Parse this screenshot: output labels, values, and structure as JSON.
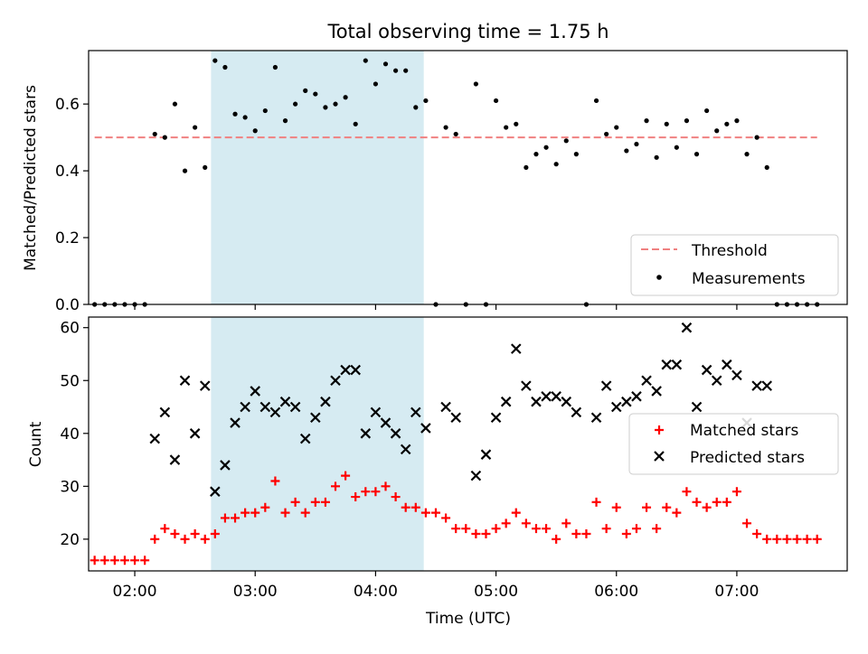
{
  "title": "Total observing time = 1.75 h",
  "colors": {
    "threshold": "#f08080",
    "measurements": "#000000",
    "matched": "#ff0000",
    "predicted": "#000000",
    "span": "#add8e6"
  },
  "chart_data": [
    {
      "type": "scatter",
      "ylabel": "Matched/Predicted stars",
      "ylim": [
        0,
        0.76
      ],
      "xlim": [
        "01:37",
        "07:55"
      ],
      "grid": false,
      "legend_position": "lower-right",
      "legend": [
        "Threshold",
        "Measurements"
      ],
      "yticks": [
        "0.0",
        "0.2",
        "0.4",
        "0.6"
      ],
      "highlight_span": [
        "02:38",
        "04:24"
      ],
      "threshold": {
        "name": "Threshold",
        "y": 0.5,
        "x": [
          "01:40",
          "07:40"
        ]
      },
      "series": [
        {
          "name": "Measurements",
          "x": [
            "01:40",
            "01:45",
            "01:50",
            "01:55",
            "02:00",
            "02:05",
            "02:10",
            "02:15",
            "02:20",
            "02:25",
            "02:30",
            "02:35",
            "02:40",
            "02:45",
            "02:50",
            "02:55",
            "03:00",
            "03:05",
            "03:10",
            "03:15",
            "03:20",
            "03:25",
            "03:30",
            "03:35",
            "03:40",
            "03:45",
            "03:50",
            "03:55",
            "04:00",
            "04:05",
            "04:10",
            "04:15",
            "04:20",
            "04:25",
            "04:30",
            "04:35",
            "04:40",
            "04:45",
            "04:50",
            "04:55",
            "05:00",
            "05:05",
            "05:10",
            "05:15",
            "05:20",
            "05:25",
            "05:30",
            "05:35",
            "05:40",
            "05:45",
            "05:50",
            "05:55",
            "06:00",
            "06:05",
            "06:10",
            "06:15",
            "06:20",
            "06:25",
            "06:30",
            "06:35",
            "06:40",
            "06:45",
            "06:50",
            "06:55",
            "07:00",
            "07:05",
            "07:10",
            "07:15",
            "07:20",
            "07:25",
            "07:30",
            "07:35",
            "07:40"
          ],
          "y": [
            0,
            0,
            0,
            0,
            0,
            0,
            0.51,
            0.5,
            0.6,
            0.4,
            0.53,
            0.41,
            0.73,
            0.71,
            0.57,
            0.56,
            0.52,
            0.58,
            0.71,
            0.55,
            0.6,
            0.64,
            0.63,
            0.59,
            0.6,
            0.62,
            0.54,
            0.73,
            0.66,
            0.72,
            0.7,
            0.7,
            0.59,
            0.61,
            0,
            0.53,
            0.51,
            0,
            0.66,
            0,
            0.61,
            0.53,
            0.54,
            0.41,
            0.45,
            0.47,
            0.42,
            0.49,
            0.45,
            0,
            0.61,
            0.51,
            0.53,
            0.46,
            0.48,
            0.55,
            0.44,
            0.54,
            0.47,
            0.55,
            0.45,
            0.58,
            0.52,
            0.54,
            0.55,
            0.45,
            0.5,
            0.41,
            0,
            0,
            0,
            0,
            0
          ]
        }
      ]
    },
    {
      "type": "scatter",
      "xlabel": "Time (UTC)",
      "ylabel": "Count",
      "ylim": [
        14,
        62
      ],
      "xlim": [
        "01:37",
        "07:55"
      ],
      "grid": false,
      "legend_position": "center-right",
      "legend": [
        "Matched stars",
        "Predicted stars"
      ],
      "yticks": [
        "20",
        "30",
        "40",
        "50",
        "60"
      ],
      "xticks": [
        "02:00",
        "03:00",
        "04:00",
        "05:00",
        "06:00",
        "07:00"
      ],
      "highlight_span": [
        "02:38",
        "04:24"
      ],
      "series": [
        {
          "name": "Matched stars",
          "marker": "plus",
          "x": [
            "01:40",
            "01:45",
            "01:50",
            "01:55",
            "02:00",
            "02:05",
            "02:10",
            "02:15",
            "02:20",
            "02:25",
            "02:30",
            "02:35",
            "02:40",
            "02:45",
            "02:50",
            "02:55",
            "03:00",
            "03:05",
            "03:10",
            "03:15",
            "03:20",
            "03:25",
            "03:30",
            "03:35",
            "03:40",
            "03:45",
            "03:50",
            "03:55",
            "04:00",
            "04:05",
            "04:10",
            "04:15",
            "04:20",
            "04:25",
            "04:30",
            "04:35",
            "04:40",
            "04:45",
            "04:50",
            "04:55",
            "05:00",
            "05:05",
            "05:10",
            "05:15",
            "05:20",
            "05:25",
            "05:30",
            "05:35",
            "05:40",
            "05:45",
            "05:50",
            "05:55",
            "06:00",
            "06:05",
            "06:10",
            "06:15",
            "06:20",
            "06:25",
            "06:30",
            "06:35",
            "06:40",
            "06:45",
            "06:50",
            "06:55",
            "07:00",
            "07:05",
            "07:10",
            "07:15",
            "07:20",
            "07:25",
            "07:30",
            "07:35",
            "07:40"
          ],
          "y": [
            16,
            16,
            16,
            16,
            16,
            16,
            20,
            22,
            21,
            20,
            21,
            20,
            21,
            24,
            24,
            25,
            25,
            26,
            31,
            25,
            27,
            25,
            27,
            27,
            30,
            32,
            28,
            29,
            29,
            30,
            28,
            26,
            26,
            25,
            25,
            24,
            22,
            22,
            21,
            21,
            22,
            23,
            25,
            23,
            22,
            22,
            20,
            23,
            21,
            21,
            27,
            22,
            26,
            21,
            22,
            26,
            22,
            26,
            25,
            29,
            27,
            26,
            27,
            27,
            29,
            23,
            21,
            20,
            20,
            20,
            20,
            20,
            20
          ]
        },
        {
          "name": "Predicted stars",
          "marker": "x",
          "x": [
            "02:10",
            "02:15",
            "02:20",
            "02:25",
            "02:30",
            "02:35",
            "02:40",
            "02:45",
            "02:50",
            "02:55",
            "03:00",
            "03:05",
            "03:10",
            "03:15",
            "03:20",
            "03:25",
            "03:30",
            "03:35",
            "03:40",
            "03:45",
            "03:50",
            "03:55",
            "04:00",
            "04:05",
            "04:10",
            "04:15",
            "04:20",
            "04:25",
            "04:35",
            "04:40",
            "04:50",
            "04:55",
            "05:00",
            "05:05",
            "05:10",
            "05:15",
            "05:20",
            "05:25",
            "05:30",
            "05:35",
            "05:40",
            "05:50",
            "05:55",
            "06:00",
            "06:05",
            "06:10",
            "06:15",
            "06:20",
            "06:25",
            "06:30",
            "06:35",
            "06:40",
            "06:45",
            "06:50",
            "06:55",
            "07:00",
            "07:05",
            "07:10",
            "07:15"
          ],
          "y": [
            39,
            44,
            35,
            50,
            40,
            49,
            29,
            34,
            42,
            45,
            48,
            45,
            44,
            46,
            45,
            39,
            43,
            46,
            50,
            52,
            52,
            40,
            44,
            42,
            40,
            37,
            44,
            41,
            45,
            43,
            32,
            36,
            43,
            46,
            56,
            49,
            46,
            47,
            47,
            46,
            44,
            43,
            49,
            45,
            46,
            47,
            50,
            48,
            53,
            53,
            60,
            45,
            52,
            50,
            53,
            51,
            42,
            49,
            49
          ]
        }
      ]
    }
  ]
}
